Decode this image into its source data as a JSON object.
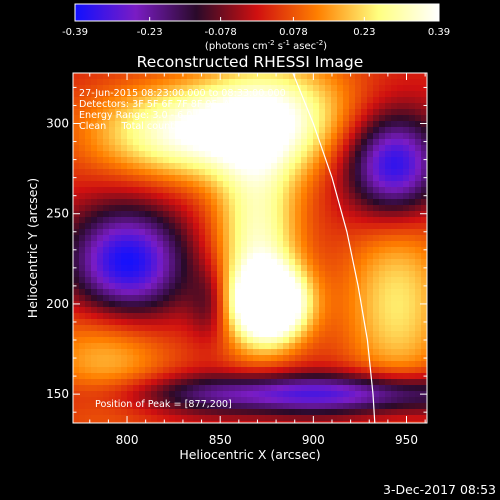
{
  "chart_data": {
    "type": "heatmap",
    "title": "Reconstructed RHESSI Image",
    "xlabel": "Heliocentric X (arcsec)",
    "ylabel": "Heliocentric Y (arcsec)",
    "xlim": [
      771,
      961
    ],
    "ylim": [
      134,
      328
    ],
    "x_ticks": [
      800,
      850,
      900,
      950
    ],
    "y_ticks": [
      150,
      200,
      250,
      300
    ],
    "colorbar": {
      "range": [
        -0.39,
        0.39
      ],
      "tick_labels": [
        "-0.39",
        "-0.23",
        "-0.078",
        "0.078",
        "0.23",
        "0.39"
      ],
      "units": "(photons cm",
      "units_full": [
        "(photons cm",
        "-2",
        " s",
        "-1",
        " asec",
        "-2",
        ")"
      ],
      "colors": [
        "#1010ff",
        "#7a1cc4",
        "#2a0a2a",
        "#d01010",
        "#ff8000",
        "#ffff80",
        "#ffffff"
      ]
    },
    "info_lines": [
      "27-Jun-2015 08:23:00.000 to 08:33:00.000",
      "Detectors: 3F 5F 6F 7F 8F 9F, Att 0",
      "Energy Range: 3.0 - 6.0 keV",
      "Clean     Total counts: 1.34E+05"
    ],
    "peak_label": "Position of Peak = [877,200]",
    "peak": {
      "x": 877,
      "y": 200
    },
    "limb_curve": [
      {
        "x": 889,
        "y": 328
      },
      {
        "x": 900,
        "y": 300
      },
      {
        "x": 910,
        "y": 270
      },
      {
        "x": 918,
        "y": 240
      },
      {
        "x": 924,
        "y": 210
      },
      {
        "x": 929,
        "y": 180
      },
      {
        "x": 932,
        "y": 150
      },
      {
        "x": 933,
        "y": 134
      }
    ],
    "blobs": [
      {
        "x": 877,
        "y": 200,
        "sx": 14,
        "sy": 14,
        "a": 0.55
      },
      {
        "x": 870,
        "y": 235,
        "sx": 16,
        "sy": 40,
        "a": 0.3
      },
      {
        "x": 830,
        "y": 295,
        "sx": 35,
        "sy": 18,
        "a": 0.32
      },
      {
        "x": 880,
        "y": 305,
        "sx": 30,
        "sy": 22,
        "a": 0.28
      },
      {
        "x": 945,
        "y": 200,
        "sx": 20,
        "sy": 35,
        "a": 0.22
      },
      {
        "x": 790,
        "y": 170,
        "sx": 25,
        "sy": 25,
        "a": 0.18
      },
      {
        "x": 800,
        "y": 222,
        "sx": 22,
        "sy": 22,
        "a": -0.42
      },
      {
        "x": 943,
        "y": 277,
        "sx": 18,
        "sy": 20,
        "a": -0.4
      },
      {
        "x": 900,
        "y": 150,
        "sx": 70,
        "sy": 8,
        "a": -0.35
      },
      {
        "x": 845,
        "y": 200,
        "sx": 8,
        "sy": 15,
        "a": -0.15
      }
    ],
    "grid": false
  },
  "footer": {
    "date": "3-Dec-2017 08:53"
  }
}
